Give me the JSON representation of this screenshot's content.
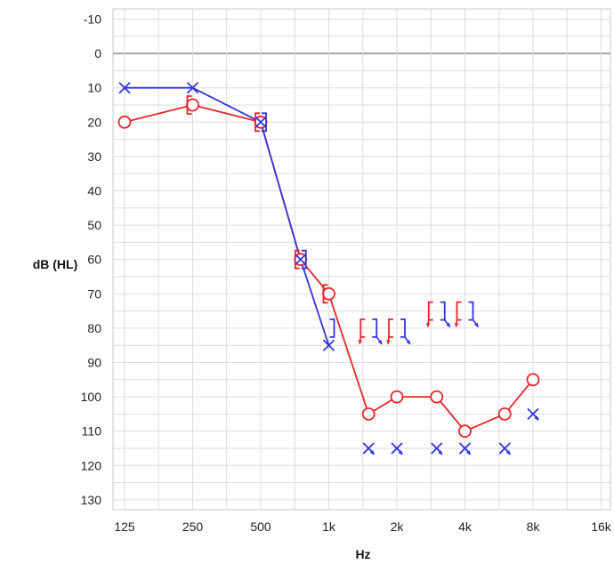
{
  "chart_data": {
    "type": "line",
    "title": "",
    "xlabel": "Hz",
    "ylabel": "dB (HL)",
    "x_ticks": [
      "125",
      "250",
      "500",
      "1k",
      "2k",
      "4k",
      "8k",
      "16k"
    ],
    "x_scale": "log2 (octaves), 125 Hz to 16 kHz",
    "y_ticks": [
      "-10",
      "0",
      "10",
      "20",
      "30",
      "40",
      "50",
      "60",
      "70",
      "80",
      "90",
      "100",
      "110",
      "120",
      "130"
    ],
    "ylim": [
      -13,
      133
    ],
    "y_inverted": true,
    "grid": true,
    "legend": "none",
    "colors": {
      "right_ear": "#e8232b",
      "left_ear": "#3333dd",
      "zero_line": "#999999",
      "grid": "#dddddd"
    },
    "series": [
      {
        "key": "right_air",
        "ear": "right",
        "symbol": "circle",
        "connected": true,
        "x": [
          125,
          250,
          500,
          750,
          1000,
          1500,
          2000,
          3000,
          4000,
          6000,
          8000
        ],
        "y": [
          20,
          15,
          20,
          60,
          70,
          105,
          100,
          100,
          110,
          105,
          95
        ]
      },
      {
        "key": "left_air",
        "ear": "left",
        "symbol": "cross",
        "connected": true,
        "x": [
          125,
          250,
          500,
          750,
          1000
        ],
        "y": [
          10,
          10,
          20,
          60,
          85
        ]
      },
      {
        "key": "left_air_no_response",
        "ear": "left",
        "symbol": "cross-with-down-arrow",
        "connected": false,
        "x": [
          1500,
          2000,
          3000,
          4000,
          6000
        ],
        "y": [
          115,
          115,
          115,
          115,
          115
        ]
      },
      {
        "key": "left_air_8k",
        "ear": "left",
        "symbol": "cross-with-down-arrow",
        "connected": false,
        "x": [
          8000
        ],
        "y": [
          105
        ]
      },
      {
        "key": "right_masked_bone",
        "ear": "right",
        "symbol": "left-bracket",
        "connected": false,
        "x": [
          250,
          500,
          750,
          1000
        ],
        "y": [
          15,
          20,
          60,
          70
        ]
      },
      {
        "key": "left_masked_bone",
        "ear": "left",
        "symbol": "right-bracket",
        "connected": false,
        "x": [
          500,
          750,
          1000
        ],
        "y": [
          20,
          60,
          80
        ]
      },
      {
        "key": "right_masked_bone_no_response",
        "ear": "right",
        "symbol": "left-bracket-with-down-arrow",
        "connected": false,
        "x": [
          1500,
          2000,
          3000,
          4000
        ],
        "y": [
          80,
          80,
          75,
          75
        ]
      },
      {
        "key": "left_masked_bone_no_response",
        "ear": "left",
        "symbol": "right-bracket-with-down-arrow",
        "connected": false,
        "x": [
          1500,
          2000,
          3000,
          4000
        ],
        "y": [
          80,
          80,
          75,
          75
        ]
      }
    ]
  }
}
